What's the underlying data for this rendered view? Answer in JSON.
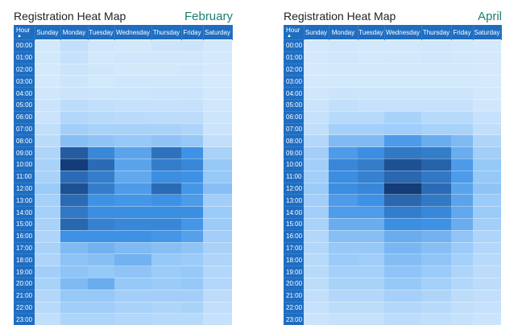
{
  "chart_data": [
    {
      "type": "heatmap",
      "title": "Registration Heat Map",
      "subtitle": "February",
      "row_header": "Hour",
      "columns": [
        "Sunday",
        "Monday",
        "Tuesday",
        "Wednesday",
        "Thursday",
        "Friday",
        "Saturday"
      ],
      "rows": [
        "00:00",
        "01:00",
        "02:00",
        "03:00",
        "04:00",
        "05:00",
        "06:00",
        "07:00",
        "08:00",
        "09:00",
        "10:00",
        "11:00",
        "12:00",
        "13:00",
        "14:00",
        "15:00",
        "16:00",
        "17:00",
        "18:00",
        "19:00",
        "20:00",
        "21:00",
        "22:00",
        "23:00"
      ],
      "values": [
        [
          0.05,
          0.12,
          0.06,
          0.05,
          0.07,
          0.08,
          0.05
        ],
        [
          0.05,
          0.1,
          0.05,
          0.06,
          0.06,
          0.06,
          0.04
        ],
        [
          0.04,
          0.08,
          0.06,
          0.05,
          0.05,
          0.06,
          0.04
        ],
        [
          0.04,
          0.07,
          0.05,
          0.06,
          0.06,
          0.06,
          0.04
        ],
        [
          0.06,
          0.08,
          0.07,
          0.07,
          0.08,
          0.08,
          0.05
        ],
        [
          0.08,
          0.14,
          0.12,
          0.11,
          0.1,
          0.11,
          0.06
        ],
        [
          0.08,
          0.18,
          0.16,
          0.15,
          0.14,
          0.14,
          0.07
        ],
        [
          0.12,
          0.25,
          0.22,
          0.22,
          0.22,
          0.2,
          0.08
        ],
        [
          0.15,
          0.35,
          0.32,
          0.3,
          0.32,
          0.3,
          0.12
        ],
        [
          0.2,
          0.85,
          0.65,
          0.5,
          0.75,
          0.6,
          0.22
        ],
        [
          0.22,
          1.0,
          0.78,
          0.5,
          0.7,
          0.65,
          0.3
        ],
        [
          0.22,
          0.78,
          0.7,
          0.48,
          0.62,
          0.6,
          0.3
        ],
        [
          0.28,
          0.9,
          0.7,
          0.55,
          0.78,
          0.58,
          0.35
        ],
        [
          0.24,
          0.78,
          0.6,
          0.58,
          0.6,
          0.55,
          0.25
        ],
        [
          0.24,
          0.72,
          0.62,
          0.62,
          0.62,
          0.62,
          0.28
        ],
        [
          0.22,
          0.8,
          0.68,
          0.65,
          0.65,
          0.58,
          0.28
        ],
        [
          0.2,
          0.6,
          0.6,
          0.6,
          0.58,
          0.52,
          0.25
        ],
        [
          0.22,
          0.38,
          0.42,
          0.38,
          0.35,
          0.32,
          0.22
        ],
        [
          0.2,
          0.33,
          0.35,
          0.42,
          0.3,
          0.28,
          0.2
        ],
        [
          0.25,
          0.32,
          0.3,
          0.32,
          0.28,
          0.3,
          0.18
        ],
        [
          0.22,
          0.38,
          0.45,
          0.3,
          0.28,
          0.3,
          0.18
        ],
        [
          0.18,
          0.3,
          0.3,
          0.25,
          0.25,
          0.25,
          0.14
        ],
        [
          0.16,
          0.26,
          0.26,
          0.22,
          0.2,
          0.22,
          0.12
        ],
        [
          0.12,
          0.2,
          0.2,
          0.18,
          0.16,
          0.16,
          0.1
        ]
      ]
    },
    {
      "type": "heatmap",
      "title": "Registration Heat Map",
      "subtitle": "April",
      "row_header": "Hour",
      "columns": [
        "Sunday",
        "Monday",
        "Tuesday",
        "Wednesday",
        "Thursday",
        "Friday",
        "Saturday"
      ],
      "rows": [
        "00:00",
        "01:00",
        "02:00",
        "03:00",
        "04:00",
        "05:00",
        "06:00",
        "07:00",
        "08:00",
        "09:00",
        "10:00",
        "11:00",
        "12:00",
        "13:00",
        "14:00",
        "15:00",
        "16:00",
        "17:00",
        "18:00",
        "19:00",
        "20:00",
        "21:00",
        "22:00",
        "23:00"
      ],
      "values": [
        [
          0.05,
          0.06,
          0.05,
          0.05,
          0.06,
          0.05,
          0.04
        ],
        [
          0.04,
          0.06,
          0.04,
          0.05,
          0.06,
          0.05,
          0.04
        ],
        [
          0.04,
          0.05,
          0.05,
          0.05,
          0.05,
          0.05,
          0.04
        ],
        [
          0.04,
          0.05,
          0.05,
          0.05,
          0.05,
          0.05,
          0.04
        ],
        [
          0.06,
          0.08,
          0.07,
          0.07,
          0.07,
          0.07,
          0.05
        ],
        [
          0.08,
          0.12,
          0.1,
          0.1,
          0.1,
          0.1,
          0.06
        ],
        [
          0.1,
          0.16,
          0.16,
          0.22,
          0.16,
          0.16,
          0.1
        ],
        [
          0.12,
          0.24,
          0.24,
          0.26,
          0.22,
          0.22,
          0.12
        ],
        [
          0.18,
          0.38,
          0.38,
          0.55,
          0.45,
          0.38,
          0.2
        ],
        [
          0.25,
          0.55,
          0.62,
          0.72,
          0.7,
          0.45,
          0.25
        ],
        [
          0.25,
          0.65,
          0.7,
          0.9,
          0.82,
          0.55,
          0.3
        ],
        [
          0.25,
          0.62,
          0.68,
          0.8,
          0.72,
          0.55,
          0.3
        ],
        [
          0.28,
          0.62,
          0.65,
          1.0,
          0.78,
          0.5,
          0.32
        ],
        [
          0.25,
          0.55,
          0.6,
          0.8,
          0.72,
          0.5,
          0.28
        ],
        [
          0.25,
          0.55,
          0.55,
          0.7,
          0.65,
          0.48,
          0.28
        ],
        [
          0.22,
          0.45,
          0.45,
          0.62,
          0.6,
          0.45,
          0.25
        ],
        [
          0.18,
          0.35,
          0.35,
          0.45,
          0.42,
          0.32,
          0.2
        ],
        [
          0.18,
          0.3,
          0.3,
          0.4,
          0.35,
          0.28,
          0.18
        ],
        [
          0.16,
          0.28,
          0.26,
          0.36,
          0.32,
          0.24,
          0.16
        ],
        [
          0.16,
          0.24,
          0.24,
          0.32,
          0.28,
          0.2,
          0.14
        ],
        [
          0.14,
          0.22,
          0.22,
          0.3,
          0.24,
          0.18,
          0.14
        ],
        [
          0.12,
          0.18,
          0.18,
          0.24,
          0.2,
          0.14,
          0.12
        ],
        [
          0.1,
          0.14,
          0.14,
          0.18,
          0.16,
          0.12,
          0.1
        ],
        [
          0.08,
          0.1,
          0.1,
          0.14,
          0.12,
          0.1,
          0.08
        ]
      ]
    }
  ]
}
